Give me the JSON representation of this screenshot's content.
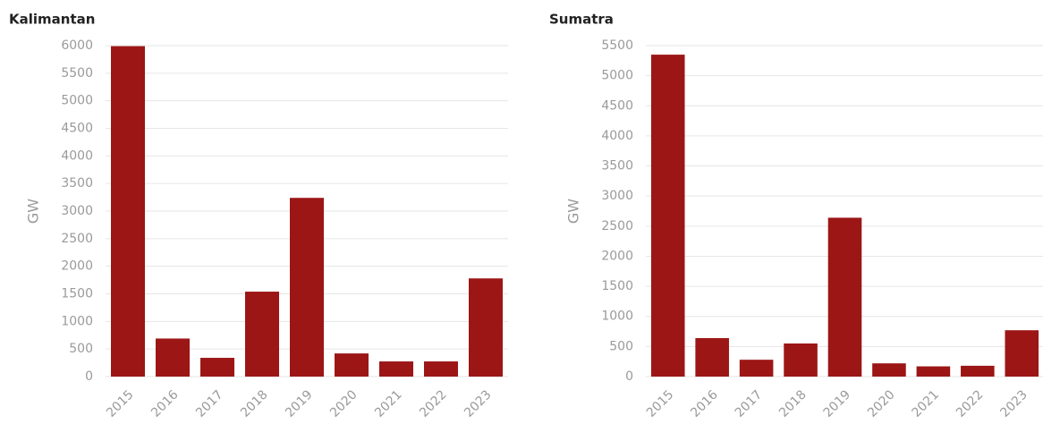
{
  "chart_data": [
    {
      "type": "bar",
      "title": "Kalimantan",
      "y_label": "GW",
      "categories": [
        "2015",
        "2016",
        "2017",
        "2018",
        "2019",
        "2020",
        "2021",
        "2022",
        "2023"
      ],
      "values": [
        5990,
        690,
        340,
        1540,
        3240,
        420,
        275,
        275,
        1780
      ],
      "color": "#9c1616",
      "ylim": [
        0,
        6000
      ],
      "yticks": [
        0,
        500,
        1000,
        1500,
        2000,
        2500,
        3000,
        3500,
        4000,
        4500,
        5000,
        5500,
        6000
      ],
      "grid": true
    },
    {
      "type": "bar",
      "title": "Sumatra",
      "y_label": "GW",
      "categories": [
        "2015",
        "2016",
        "2017",
        "2018",
        "2019",
        "2020",
        "2021",
        "2022",
        "2023"
      ],
      "values": [
        5350,
        640,
        280,
        550,
        2640,
        220,
        170,
        180,
        770
      ],
      "color": "#9c1616",
      "ylim": [
        0,
        5500
      ],
      "yticks": [
        0,
        500,
        1000,
        1500,
        2000,
        2500,
        3000,
        3500,
        4000,
        4500,
        5000,
        5500
      ],
      "grid": true
    }
  ]
}
